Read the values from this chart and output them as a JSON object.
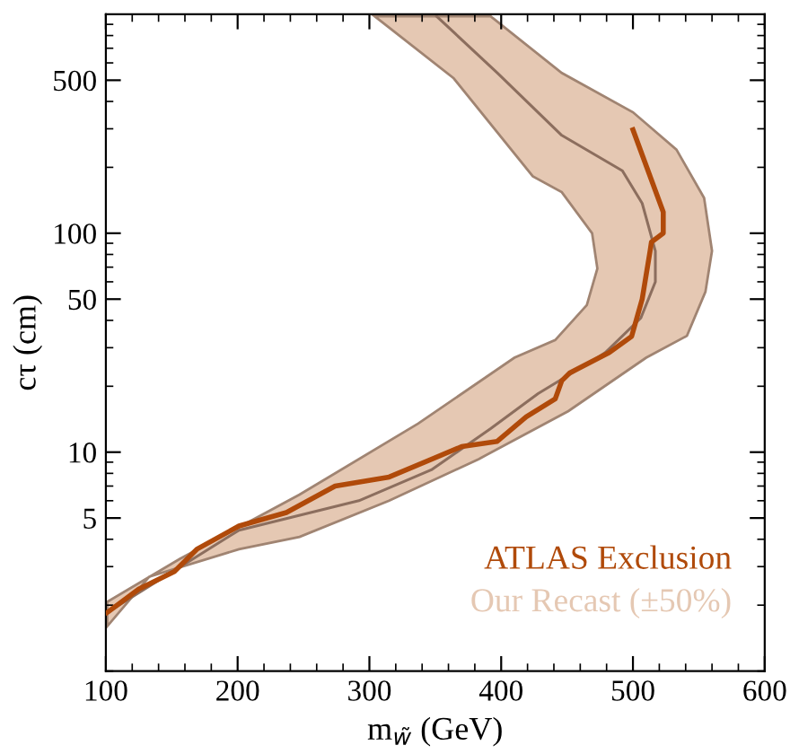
{
  "chart_data": {
    "type": "line",
    "xlabel": "m$_{w̃}$ (GeV)",
    "ylabel": "cτ (cm)",
    "xlim": [
      100,
      600
    ],
    "xticks": [
      100,
      200,
      300,
      400,
      500,
      600
    ],
    "ylim": [
      1,
      1000
    ],
    "yticks": [
      5,
      10,
      50,
      100,
      500
    ],
    "log": "y",
    "grid": false,
    "legend": "bottom right",
    "series": [
      {
        "type": "area",
        "name": "Our Recast (±50%)",
        "color": "#e5c8b3",
        "x": [
          304,
          364,
          424,
          446,
          469,
          473,
          465,
          441,
          410,
          337,
          247,
          156,
          101,
          101,
          133,
          201,
          247,
          315,
          383,
          451,
          510,
          541,
          555,
          560,
          554,
          533,
          500,
          446,
          392
        ],
        "values": [
          980,
          510,
          182,
          154,
          100,
          69,
          47,
          32.5,
          27,
          13.5,
          6.4,
          3.25,
          2.07,
          1.6,
          2.7,
          3.6,
          4.1,
          6.0,
          9.3,
          15.4,
          27,
          34,
          54,
          83,
          145,
          241,
          357,
          540,
          980
        ]
      },
      {
        "color": "#8c6e5e",
        "x": [
          351,
          397,
          446,
          492,
          507,
          517,
          517,
          506,
          479,
          473,
          428,
          392,
          347,
          292,
          201,
          101
        ],
        "values": [
          980,
          540,
          280,
          193,
          137,
          83,
          60,
          41,
          28.5,
          27,
          18.5,
          12.8,
          8.3,
          6.0,
          4.4,
          1.85
        ]
      },
      {
        "name": "ATLAS Exclusion",
        "color": "#b04a0a",
        "x": [
          500,
          523,
          523,
          514,
          513,
          507,
          499,
          482,
          452,
          446,
          441,
          419,
          397,
          370,
          315,
          274,
          237,
          201,
          169,
          152,
          125,
          101
        ],
        "values": [
          297,
          125,
          100,
          91,
          83,
          50,
          33.8,
          28.5,
          23,
          21.2,
          17.5,
          14.5,
          11.2,
          10.6,
          7.7,
          7.0,
          5.3,
          4.6,
          3.6,
          2.85,
          2.37,
          1.85
        ]
      }
    ]
  }
}
